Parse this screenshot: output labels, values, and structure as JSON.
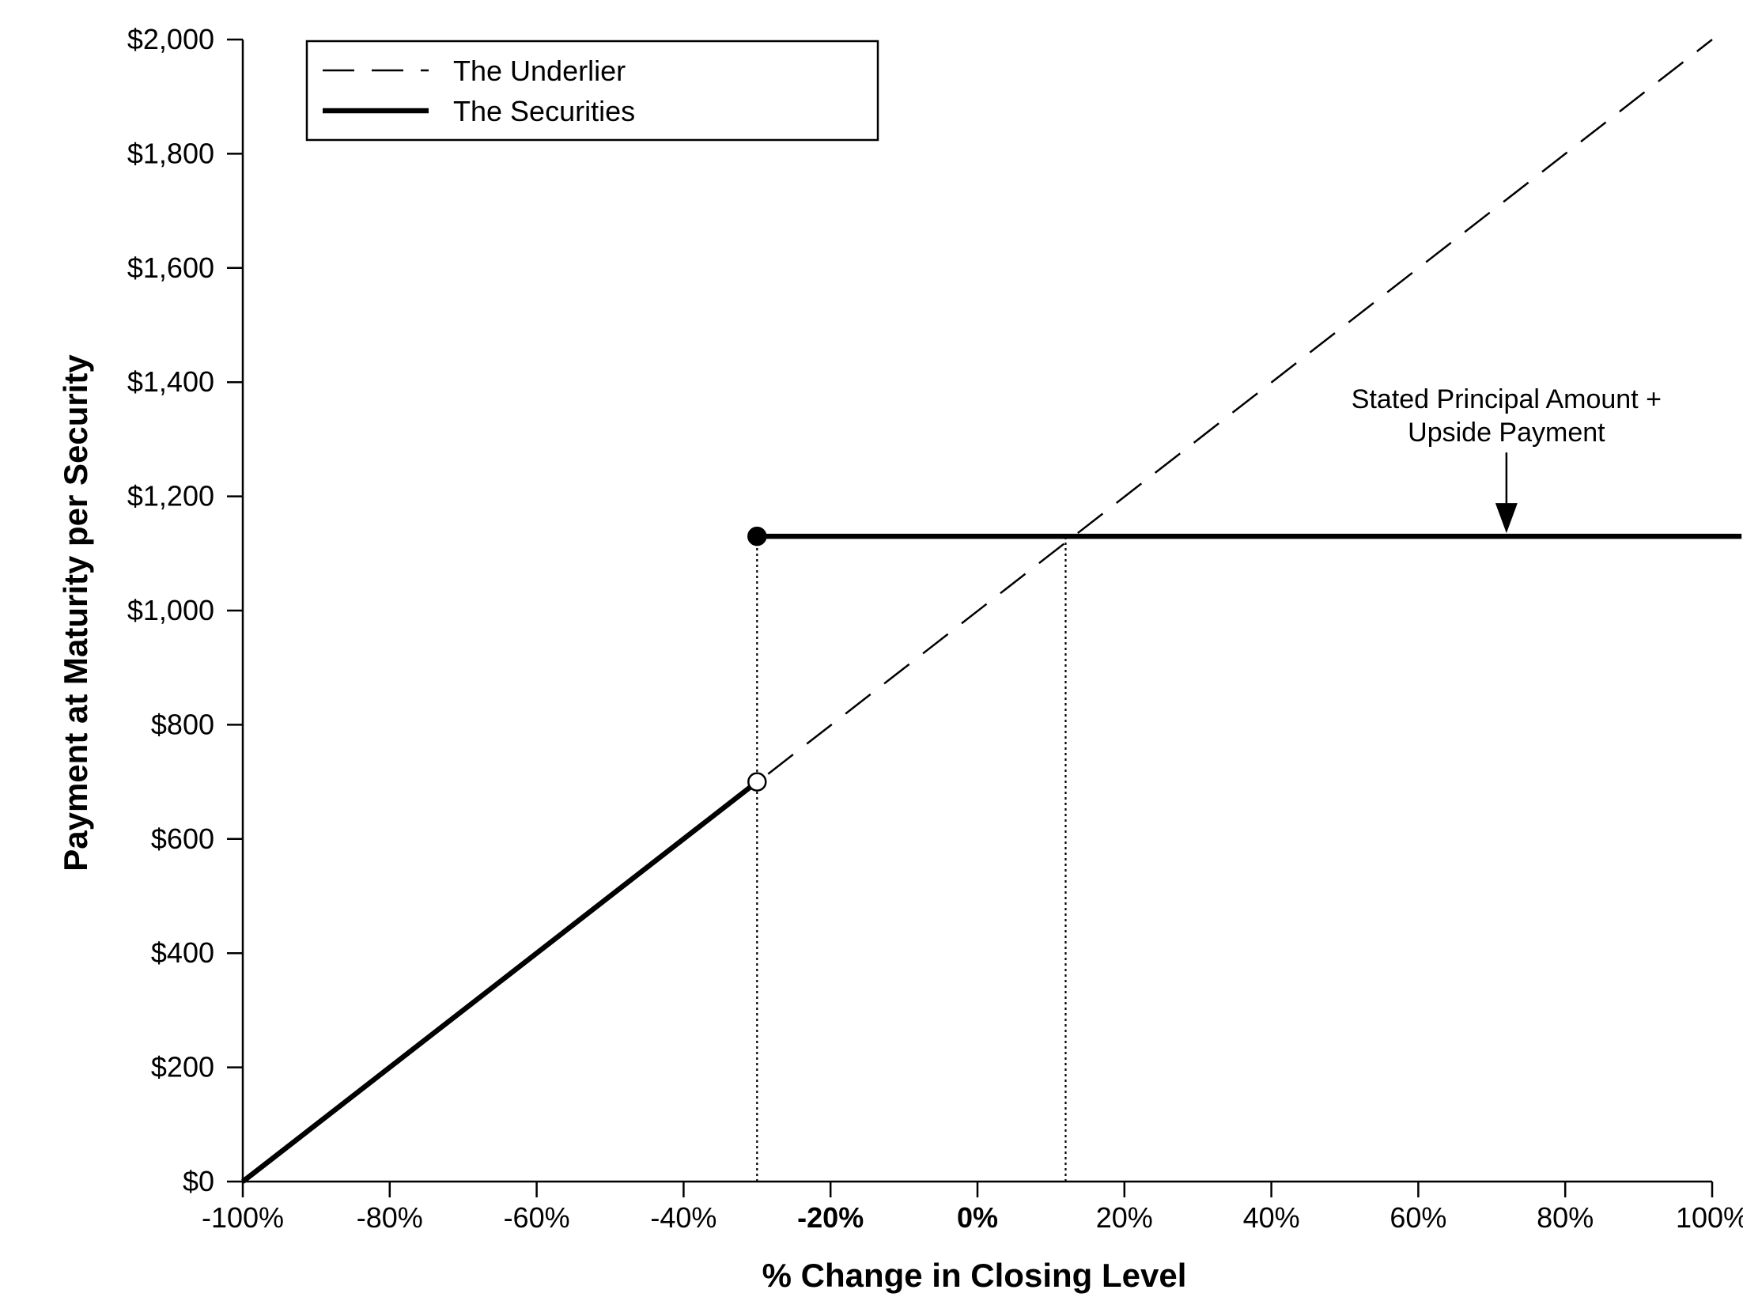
{
  "chart_data": {
    "type": "line",
    "xlabel": "% Change in Closing Level",
    "ylabel": "Payment at Maturity per Security",
    "xlim": [
      -100,
      100
    ],
    "ylim": [
      0,
      2000
    ],
    "x_ticks": [
      {
        "value": -100,
        "label": "-100%",
        "bold": false
      },
      {
        "value": -80,
        "label": "-80%",
        "bold": false
      },
      {
        "value": -60,
        "label": "-60%",
        "bold": false
      },
      {
        "value": -40,
        "label": "-40%",
        "bold": false
      },
      {
        "value": -20,
        "label": "-20%",
        "bold": true
      },
      {
        "value": 0,
        "label": "0%",
        "bold": true
      },
      {
        "value": 20,
        "label": "20%",
        "bold": false
      },
      {
        "value": 40,
        "label": "40%",
        "bold": false
      },
      {
        "value": 60,
        "label": "60%",
        "bold": false
      },
      {
        "value": 80,
        "label": "80%",
        "bold": false
      },
      {
        "value": 100,
        "label": "100%",
        "bold": false
      }
    ],
    "y_ticks": [
      {
        "value": 0,
        "label": "$0"
      },
      {
        "value": 200,
        "label": "$200"
      },
      {
        "value": 400,
        "label": "$400"
      },
      {
        "value": 600,
        "label": "$600"
      },
      {
        "value": 800,
        "label": "$800"
      },
      {
        "value": 1000,
        "label": "$1,000"
      },
      {
        "value": 1200,
        "label": "$1,200"
      },
      {
        "value": 1400,
        "label": "$1,400"
      },
      {
        "value": 1600,
        "label": "$1,600"
      },
      {
        "value": 1800,
        "label": "$1,800"
      },
      {
        "value": 2000,
        "label": "$2,000"
      }
    ],
    "series": [
      {
        "name": "The Underlier",
        "style": "dashed",
        "color": "#000000",
        "points": [
          [
            -30,
            700
          ],
          [
            100,
            2000
          ]
        ]
      },
      {
        "name": "The Securities",
        "style": "solid-thick",
        "color": "#000000",
        "segments": [
          [
            [
              -100,
              0
            ],
            [
              -30,
              700
            ]
          ],
          [
            [
              -30,
              1130
            ],
            [
              104,
              1130
            ]
          ]
        ]
      }
    ],
    "markers": [
      {
        "x": -30,
        "y": 1130,
        "fill": "filled"
      },
      {
        "x": -30,
        "y": 700,
        "fill": "open"
      }
    ],
    "reference_lines": [
      {
        "x": -30,
        "y_from": 0,
        "y_to": 1130,
        "style": "dotted"
      },
      {
        "x": 12,
        "y_from": 0,
        "y_to": 1130,
        "style": "dotted"
      }
    ],
    "annotations": [
      {
        "lines": [
          "Stated Principal Amount +",
          "Upside Payment"
        ],
        "arrow_to": {
          "x": 72,
          "y": 1130
        }
      }
    ],
    "legend": {
      "placement": "top-left",
      "entries": [
        {
          "label": "The Underlier",
          "style": "dashed"
        },
        {
          "label": "The Securities",
          "style": "solid-thick"
        }
      ]
    },
    "grid": false
  }
}
